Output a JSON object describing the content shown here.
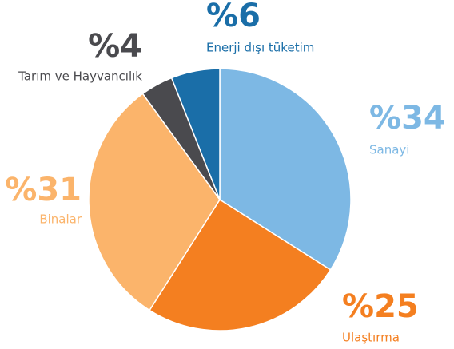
{
  "chart_data": {
    "type": "pie",
    "categories": [
      "Sanayi",
      "Ulaştırma",
      "Binalar",
      "Tarım ve Hayvancılık",
      "Enerji dışı tüketim"
    ],
    "values": [
      34,
      25,
      31,
      4,
      6
    ],
    "value_labels": [
      "%34",
      "%25",
      "%31",
      "%4",
      "%6"
    ],
    "colors": [
      "#7db8e4",
      "#f47f20",
      "#fbb46b",
      "#4a4a4e",
      "#1a6ea8"
    ]
  }
}
